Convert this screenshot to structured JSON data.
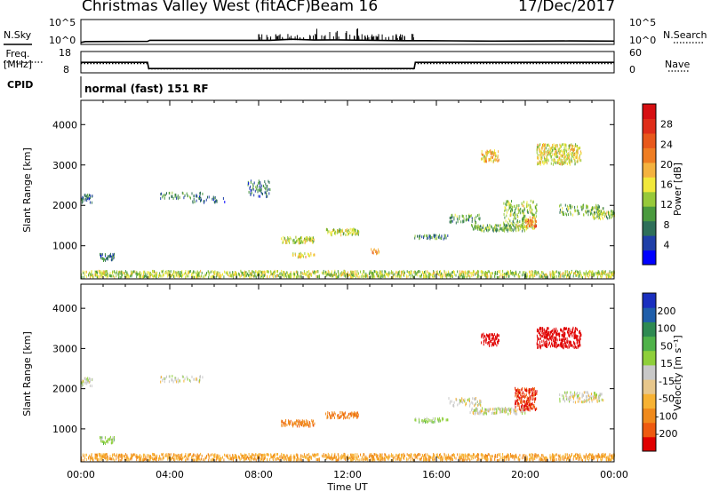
{
  "header": {
    "title": "Christmas Valley West (fitACF)",
    "beam": "Beam 16",
    "date": "17/Dec/2017"
  },
  "left_labels": {
    "nsky": "N.Sky",
    "freq_line1": "Freq.",
    "freq_line2": "[MHz]",
    "cpid": "CPID"
  },
  "right_labels": {
    "nsearch": "N.Search",
    "nave": "Nave"
  },
  "mode_text": "normal (fast) 151 RF",
  "colors": {
    "power": [
      "#0000ff",
      "#1f3fa8",
      "#2e6f59",
      "#4a9a3e",
      "#97c93a",
      "#f1e83b",
      "#f4b23f",
      "#ef7d22",
      "#e8581b",
      "#df2d19",
      "#d60f12"
    ],
    "velocity_legend": [
      "#e00000",
      "#ee5a10",
      "#f08a1c",
      "#f7b233",
      "#e7c78c",
      "#c8c8c8",
      "#8ecf3a",
      "#4fb249",
      "#2e8a52",
      "#1f5eaa",
      "#1a2fbf"
    ],
    "velocity_obs": [
      "#c8c8c8",
      "#f08a1c",
      "#ee5a10",
      "#e00000",
      "#8ecf3a",
      "#1f5eaa"
    ]
  },
  "chart_data": [
    {
      "type": "line",
      "panel": "noise",
      "series": [
        {
          "name": "N.Sky",
          "x_hours": [
            0,
            0.2,
            3.0,
            3.1,
            8.5,
            9.5,
            10.5,
            11.3,
            12.0,
            14.5,
            15.5,
            18.5,
            22,
            24
          ],
          "y_log10": [
            0.05,
            0.25,
            0.3,
            0.55,
            0.55,
            0.8,
            0.6,
            0.65,
            0.6,
            0.45,
            0.45,
            0.35,
            0.4,
            0.35
          ]
        }
      ],
      "ylabels_left": [
        "10^5",
        "10^0"
      ],
      "ylabels_right": [
        "10^5",
        "10^0"
      ]
    },
    {
      "type": "line",
      "panel": "frequency",
      "series": [
        {
          "name": "Freq",
          "x_hours": [
            0,
            3.0,
            3.05,
            15.0,
            15.05,
            24
          ],
          "y_mhz": [
            12.9,
            12.9,
            10.0,
            10.0,
            12.9,
            12.9
          ]
        },
        {
          "name": "Nave",
          "x_hours": [
            0,
            3.0,
            3.05,
            15.0,
            15.05,
            24
          ],
          "y_nave": [
            26,
            26,
            11,
            11,
            26,
            26
          ]
        }
      ],
      "ylabels_left": [
        "18",
        "8"
      ],
      "ylabels_right": [
        "60",
        "0"
      ]
    },
    {
      "type": "heatmap",
      "panel": "power",
      "ylabel": "Slant Range [km]",
      "yticks": [
        1000,
        2000,
        3000,
        4000
      ],
      "ylim": [
        180,
        4600
      ],
      "colorbar_label": "Power [dB]",
      "colorbar_ticks": [
        "28",
        "24",
        "20",
        "16",
        "12",
        "8",
        "4"
      ],
      "patches": [
        {
          "t0": 0.0,
          "t1": 24.0,
          "r0": 200,
          "r1": 360,
          "d": 0.55,
          "p": 13
        },
        {
          "t0": 0.0,
          "t1": 0.5,
          "r0": 2050,
          "r1": 2250,
          "d": 0.5,
          "p": 5
        },
        {
          "t0": 0.8,
          "t1": 1.5,
          "r0": 620,
          "r1": 780,
          "d": 0.5,
          "p": 6
        },
        {
          "t0": 3.5,
          "t1": 5.5,
          "r0": 2150,
          "r1": 2300,
          "d": 0.25,
          "p": 7
        },
        {
          "t0": 5.0,
          "t1": 6.5,
          "r0": 2050,
          "r1": 2200,
          "d": 0.2,
          "p": 5
        },
        {
          "t0": 7.5,
          "t1": 8.5,
          "r0": 2200,
          "r1": 2600,
          "d": 0.25,
          "p": 6
        },
        {
          "t0": 9.0,
          "t1": 10.5,
          "r0": 1050,
          "r1": 1200,
          "d": 0.6,
          "p": 14
        },
        {
          "t0": 9.5,
          "t1": 10.5,
          "r0": 700,
          "r1": 800,
          "d": 0.45,
          "p": 16
        },
        {
          "t0": 11.0,
          "t1": 12.5,
          "r0": 1250,
          "r1": 1400,
          "d": 0.55,
          "p": 14
        },
        {
          "t0": 13.0,
          "t1": 13.4,
          "r0": 780,
          "r1": 900,
          "d": 0.5,
          "p": 21
        },
        {
          "t0": 15.0,
          "t1": 16.5,
          "r0": 1150,
          "r1": 1250,
          "d": 0.45,
          "p": 7
        },
        {
          "t0": 16.5,
          "t1": 18.0,
          "r0": 1550,
          "r1": 1750,
          "d": 0.3,
          "p": 9
        },
        {
          "t0": 18.0,
          "t1": 18.8,
          "r0": 3050,
          "r1": 3350,
          "d": 0.5,
          "p": 17
        },
        {
          "t0": 17.5,
          "t1": 20.0,
          "r0": 1350,
          "r1": 1500,
          "d": 0.5,
          "p": 10
        },
        {
          "t0": 19.0,
          "t1": 20.5,
          "r0": 1400,
          "r1": 2100,
          "d": 0.3,
          "p": 12
        },
        {
          "t0": 20.0,
          "t1": 20.5,
          "r0": 1450,
          "r1": 1700,
          "d": 0.6,
          "p": 21
        },
        {
          "t0": 20.5,
          "t1": 22.5,
          "r0": 3000,
          "r1": 3500,
          "d": 0.5,
          "p": 15
        },
        {
          "t0": 21.5,
          "t1": 23.5,
          "r0": 1750,
          "r1": 2000,
          "d": 0.3,
          "p": 10
        },
        {
          "t0": 23.0,
          "t1": 24.0,
          "r0": 1650,
          "r1": 1850,
          "d": 0.5,
          "p": 12
        }
      ]
    },
    {
      "type": "heatmap",
      "panel": "velocity",
      "ylabel": "Slant Range [km]",
      "yticks": [
        1000,
        2000,
        3000,
        4000
      ],
      "ylim": [
        180,
        4600
      ],
      "colorbar_label": "Velocity [m s⁻¹]",
      "colorbar_ticks": [
        "200",
        "100",
        "50",
        "15",
        "-15",
        "-50",
        "-100",
        "-200"
      ],
      "xlabel": "Time UT",
      "xticks": [
        "00:00",
        "04:00",
        "08:00",
        "12:00",
        "16:00",
        "20:00",
        "00:00"
      ],
      "xlim_hours": [
        0,
        24
      ],
      "patches": [
        {
          "t0": 0.0,
          "t1": 24.0,
          "r0": 200,
          "r1": 360,
          "d": 0.55,
          "v": -45
        },
        {
          "t0": 0.0,
          "t1": 0.5,
          "r0": 2050,
          "r1": 2250,
          "d": 0.5,
          "v": 0
        },
        {
          "t0": 0.8,
          "t1": 1.5,
          "r0": 620,
          "r1": 780,
          "d": 0.5,
          "v": 30
        },
        {
          "t0": 3.5,
          "t1": 5.5,
          "r0": 2150,
          "r1": 2300,
          "d": 0.25,
          "v": 0
        },
        {
          "t0": 9.0,
          "t1": 10.5,
          "r0": 1050,
          "r1": 1200,
          "d": 0.6,
          "v": -80
        },
        {
          "t0": 11.0,
          "t1": 12.5,
          "r0": 1250,
          "r1": 1400,
          "d": 0.55,
          "v": -80
        },
        {
          "t0": 15.0,
          "t1": 16.5,
          "r0": 1150,
          "r1": 1250,
          "d": 0.45,
          "v": 30
        },
        {
          "t0": 16.5,
          "t1": 18.0,
          "r0": 1550,
          "r1": 1750,
          "d": 0.3,
          "v": 0
        },
        {
          "t0": 18.0,
          "t1": 18.8,
          "r0": 3050,
          "r1": 3350,
          "d": 0.5,
          "v": -200
        },
        {
          "t0": 17.5,
          "t1": 20.0,
          "r0": 1350,
          "r1": 1500,
          "d": 0.5,
          "v": 0
        },
        {
          "t0": 19.5,
          "t1": 20.5,
          "r0": 1450,
          "r1": 2000,
          "d": 0.5,
          "v": -150
        },
        {
          "t0": 20.5,
          "t1": 22.5,
          "r0": 3000,
          "r1": 3500,
          "d": 0.5,
          "v": -220
        },
        {
          "t0": 21.5,
          "t1": 23.5,
          "r0": 1650,
          "r1": 1900,
          "d": 0.35,
          "v": 0
        }
      ]
    }
  ]
}
